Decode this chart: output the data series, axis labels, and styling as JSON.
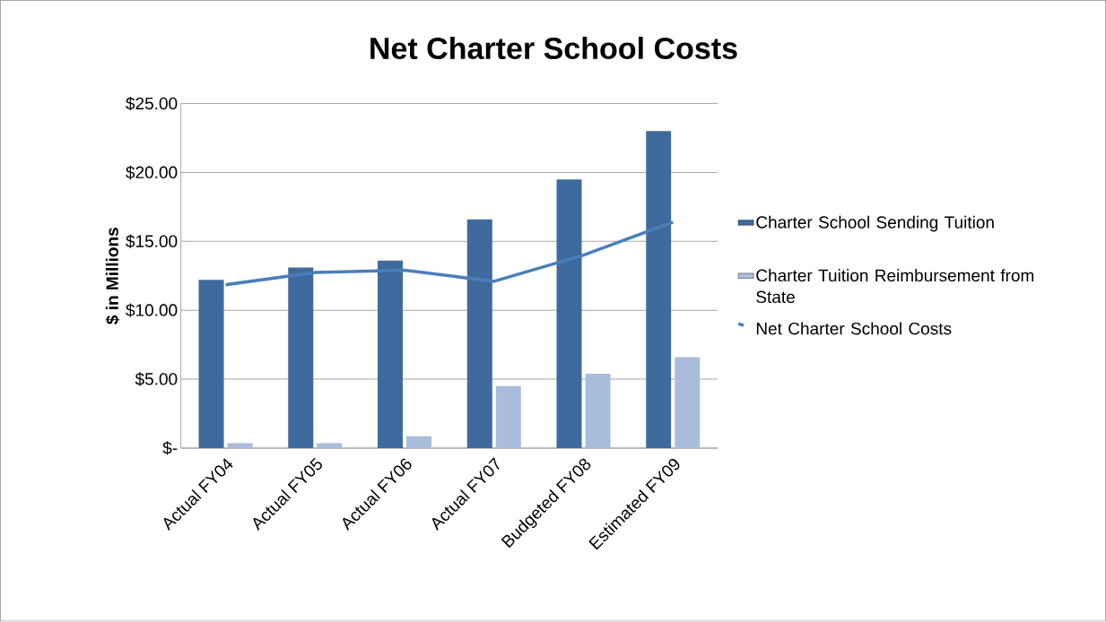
{
  "chart_data": {
    "type": "bar",
    "title": "Net Charter School Costs",
    "ylabel": "$ in Millions",
    "categories": [
      "Actual FY04",
      "Actual FY05",
      "Actual FY06",
      "Actual FY07",
      "Budgeted FY08",
      "Estimated  FY09"
    ],
    "series": [
      {
        "name": "Charter School Sending Tuition",
        "color": "#3f6a9e",
        "values": [
          12.2,
          13.1,
          13.6,
          16.6,
          19.5,
          23.0
        ]
      },
      {
        "name": "Charter Tuition Reimbursement from State",
        "color": "#a9bcdb",
        "values": [
          0.35,
          0.35,
          0.85,
          4.5,
          5.4,
          6.6
        ]
      },
      {
        "name": "Net Charter School Costs",
        "type": "line",
        "color": "#4a7ebb",
        "values": [
          11.85,
          12.75,
          12.9,
          12.1,
          14.0,
          16.4
        ]
      }
    ],
    "ylim": [
      0,
      25
    ],
    "yticks": [
      {
        "value": 0,
        "label": "$-"
      },
      {
        "value": 5,
        "label": "$5.00"
      },
      {
        "value": 10,
        "label": "$10.00"
      },
      {
        "value": 15,
        "label": "$15.00"
      },
      {
        "value": 20,
        "label": "$20.00"
      },
      {
        "value": 25,
        "label": "$25.00"
      }
    ],
    "grid": "y",
    "legend": "right"
  }
}
